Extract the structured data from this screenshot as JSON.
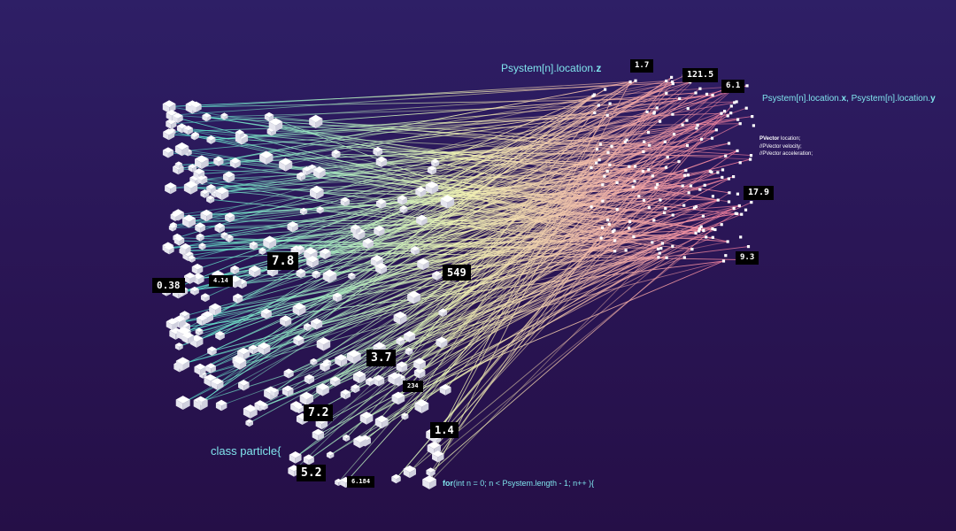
{
  "colors": {
    "background_top": "#2e1f66",
    "background_bottom": "#250f47",
    "line_left": "#46e0d0",
    "line_mid": "#f2f5b4",
    "line_right": "#f2709a",
    "code_text": "#7fe3ec"
  },
  "labels": {
    "loc_z": {
      "pre": "Psystem[n].location.",
      "bold": "z"
    },
    "loc_xy": {
      "pre1": "Psystem[n].location.",
      "bold1": "x",
      "mid": ", Psystem[n].location.",
      "bold2": "y"
    },
    "class_decl": "class particle{",
    "for_loop": {
      "kw": "for",
      "rest": "(int n = 0; n < Psystem.length - 1; n++ ){"
    },
    "pvector": {
      "kw": "PVector",
      "line1_rest": " location;",
      "line2": "//PVector velocity;",
      "line3": "//PVector acceleration;"
    }
  },
  "values": {
    "v1": "1.7",
    "v2": "121.5",
    "v3": "6.1",
    "v4": "17.9",
    "v5": "9.3",
    "v6": "7.8",
    "v7": "0.38",
    "v8": "4.14",
    "v9": "549",
    "v10": "3.7",
    "v11": "234",
    "v12": "7.2",
    "v13": "1.4",
    "v14": "5.2",
    "v15": "6.184"
  }
}
